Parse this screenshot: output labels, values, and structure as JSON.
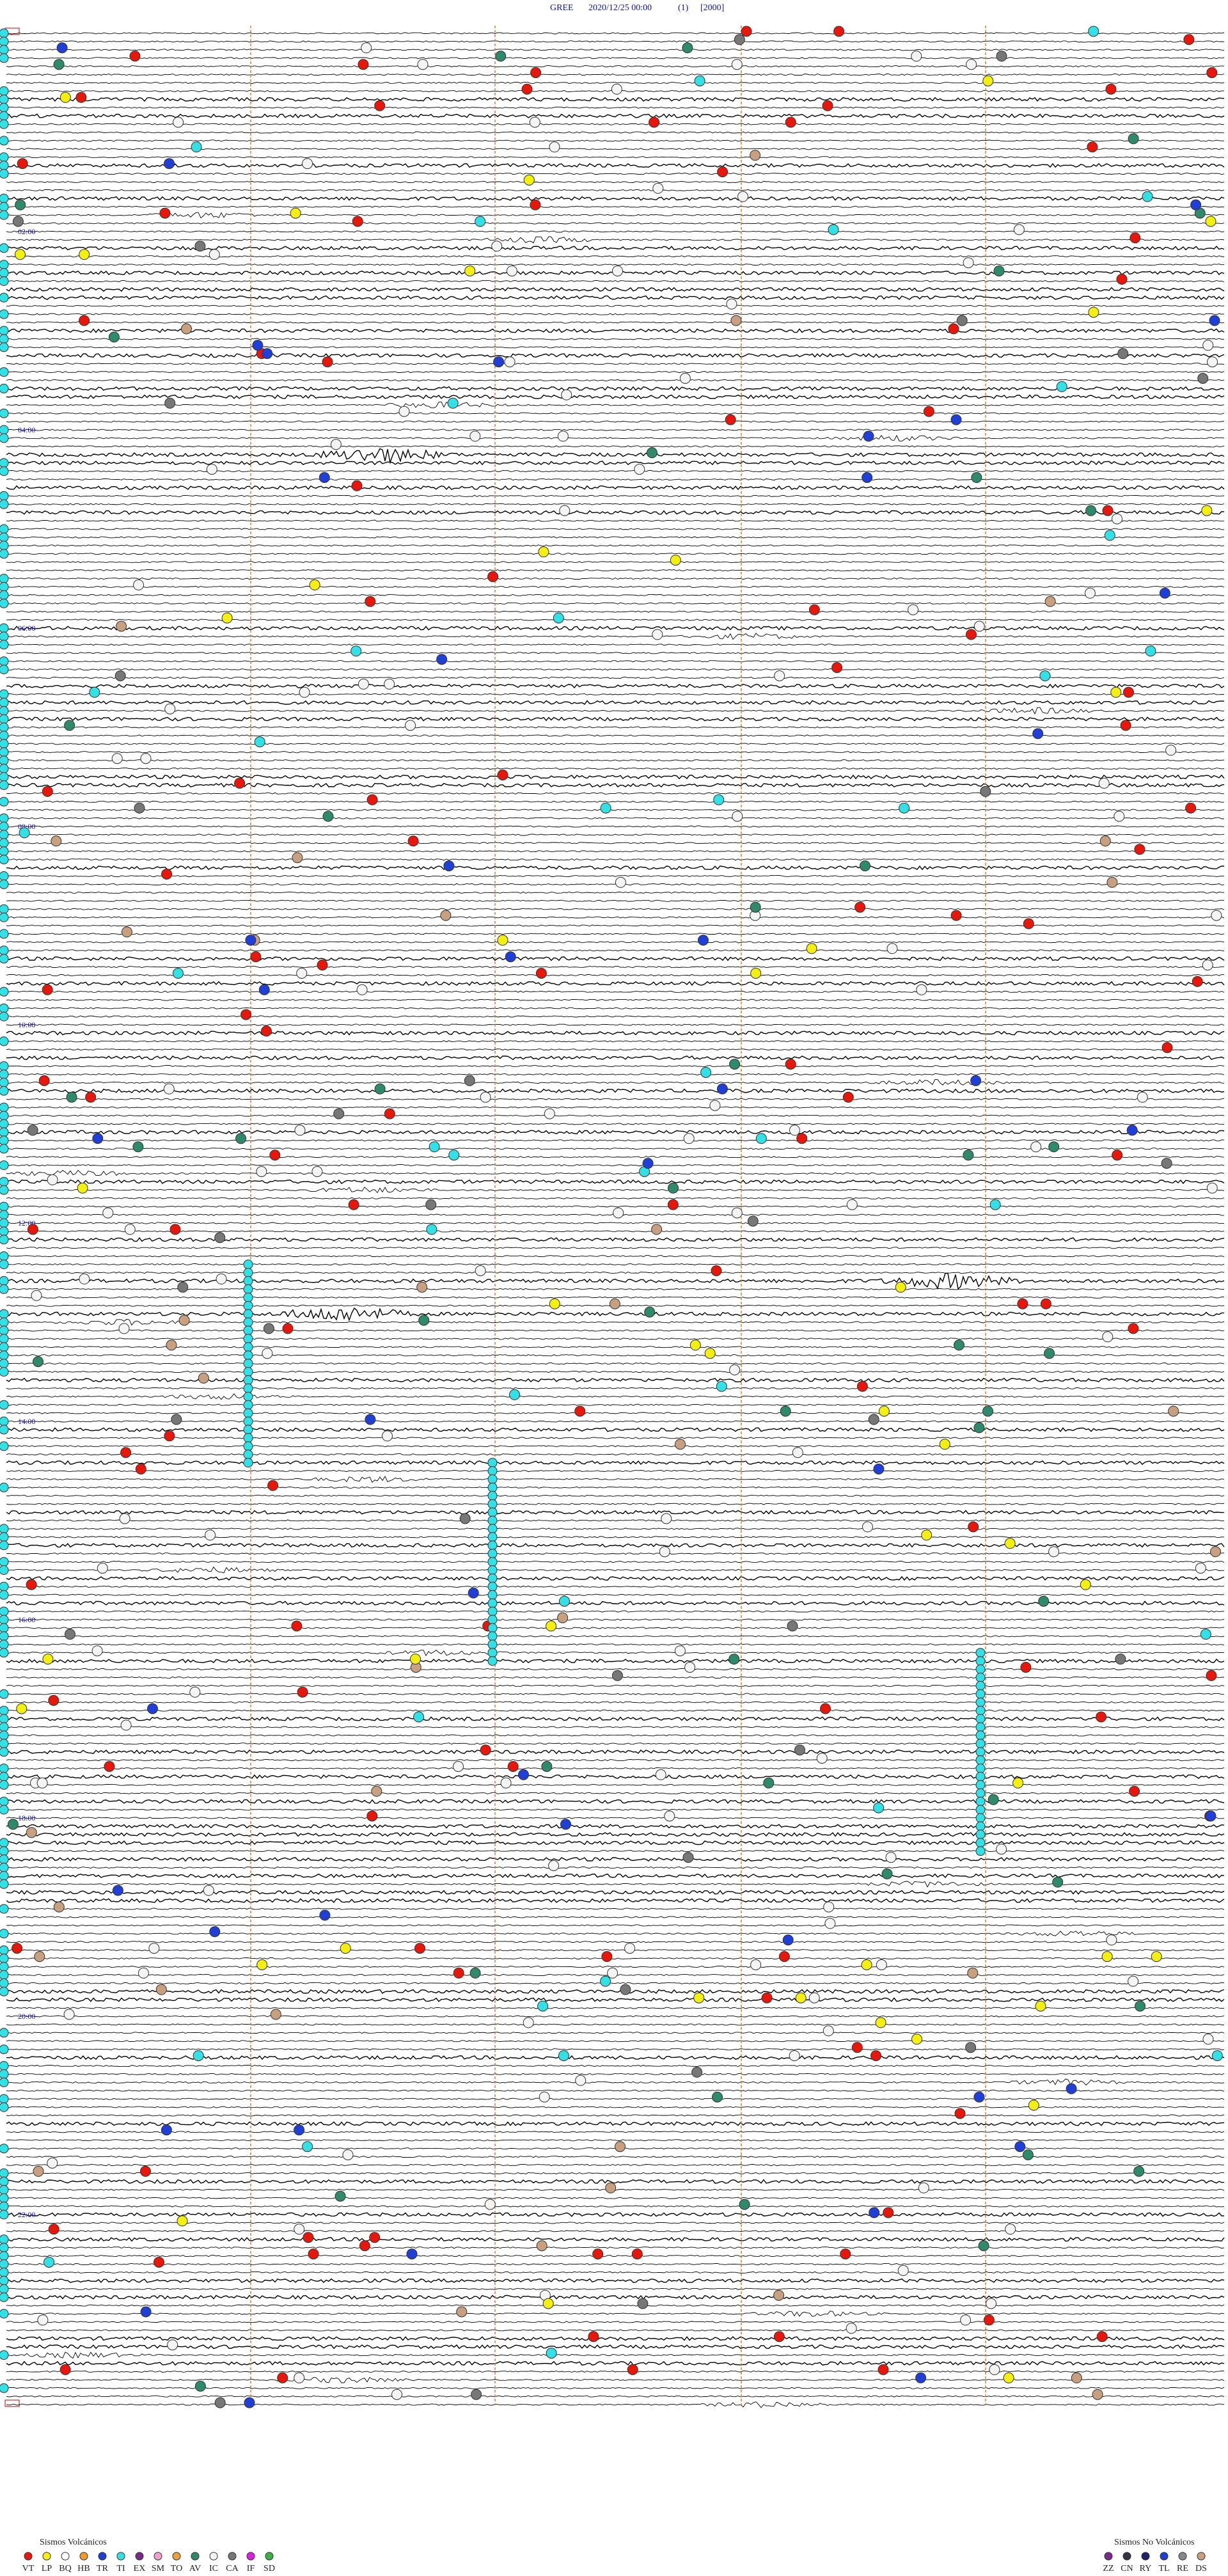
{
  "header": {
    "station": "GREE",
    "datetime": "2020/12/25 00:00",
    "channel": "(1)",
    "scale": "[2000]"
  },
  "time_labels": [
    "02:00",
    "04:00",
    "06:00",
    "08:00",
    "10:00",
    "12:00",
    "14:00",
    "16:00",
    "18:00",
    "20:00",
    "22:00"
  ],
  "legend_volcanic": {
    "title": "Sismos Volcánicos",
    "items": [
      {
        "label": "VT",
        "color": "#e8170c"
      },
      {
        "label": "LP",
        "color": "#f5ef0f"
      },
      {
        "label": "BQ",
        "color": "#ffffff"
      },
      {
        "label": "HB",
        "color": "#f29a2e"
      },
      {
        "label": "TR",
        "color": "#1f3fd6"
      },
      {
        "label": "TI",
        "color": "#33e0e6"
      },
      {
        "label": "EX",
        "color": "#7a2a8c"
      },
      {
        "label": "SM",
        "color": "#f2a0d0"
      },
      {
        "label": "TO",
        "color": "#e8a040"
      },
      {
        "label": "AV",
        "color": "#2e8a6a"
      },
      {
        "label": "IC",
        "color": "#f4f4f4"
      },
      {
        "label": "CA",
        "color": "#777777"
      },
      {
        "label": "IF",
        "color": "#e020e0"
      },
      {
        "label": "SD",
        "color": "#3cb044"
      }
    ]
  },
  "legend_nonvolcanic": {
    "title": "Sismos No Volcánicos",
    "items": [
      {
        "label": "ZZ",
        "color": "#7a2a8c"
      },
      {
        "label": "CN",
        "color": "#333344"
      },
      {
        "label": "RY",
        "color": "#22226a"
      },
      {
        "label": "TL",
        "color": "#1f3fd6"
      },
      {
        "label": "RE",
        "color": "#888888"
      },
      {
        "label": "DS",
        "color": "#c8a080"
      }
    ]
  }
}
